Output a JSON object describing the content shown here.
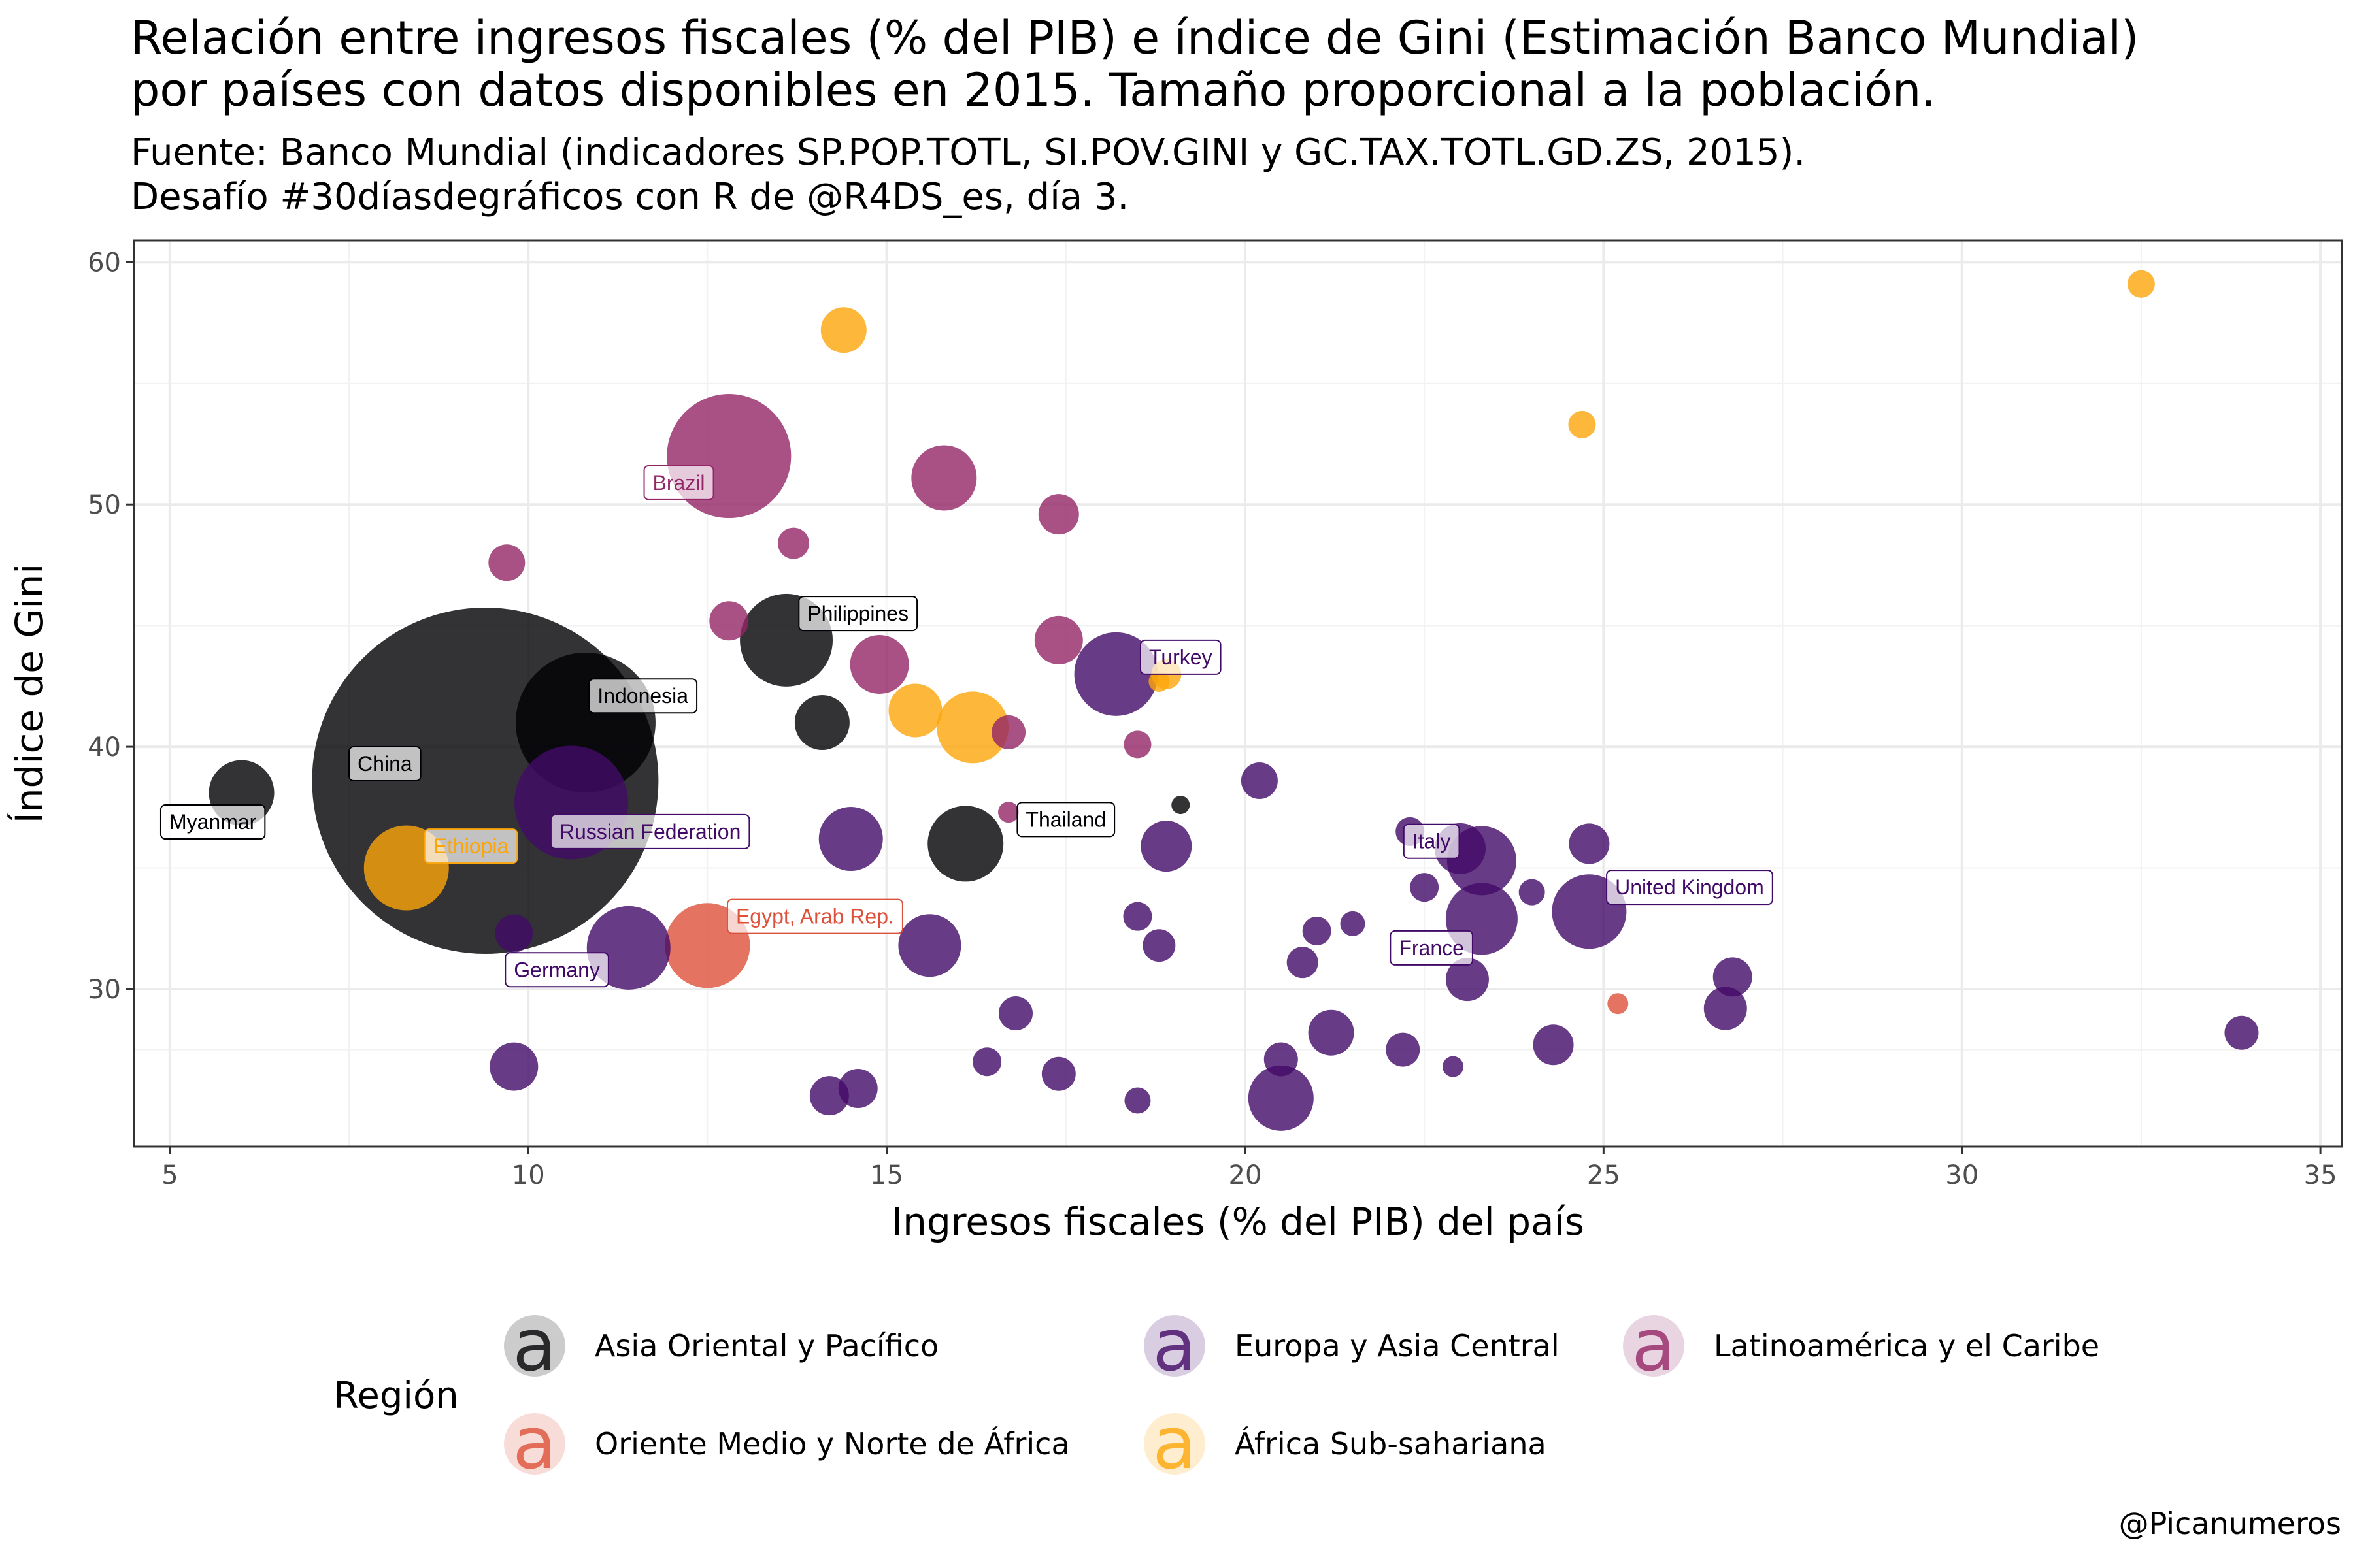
{
  "title": "Relación entre ingresos fiscales (% del PIB) e índice de Gini (Estimación Banco Mundial)\npor países con datos disponibles en 2015. Tamaño proporcional a la población.",
  "subtitle": "Fuente: Banco Mundial (indicadores SP.POP.TOTL, SI.POV.GINI y GC.TAX.TOTL.GD.ZS, 2015).\nDesafío #30díasdegráficos con R de @R4DS_es, día 3.",
  "caption": "@Picanumeros",
  "chart_data": {
    "type": "scatter",
    "xlabel": "Ingresos fiscales (% del PIB) del país",
    "ylabel": "Índice de Gini",
    "xlim": [
      4.5,
      35.3
    ],
    "ylim": [
      23.5,
      60.9
    ],
    "x_ticks": [
      5,
      10,
      15,
      20,
      25,
      30,
      35
    ],
    "y_ticks": [
      30,
      40,
      50,
      60
    ],
    "grid": true,
    "legend": {
      "title": "Región",
      "position": "bottom",
      "key_glyph": "a"
    },
    "regions": [
      {
        "name": "Asia Oriental y Pacífico",
        "color": "#000004"
      },
      {
        "name": "Europa y Asia Central",
        "color": "#420A68"
      },
      {
        "name": "Latinoamérica y el Caribe",
        "color": "#932667"
      },
      {
        "name": "Oriente Medio y Norte de África",
        "color": "#DD513A"
      },
      {
        "name": "África Sub-sahariana",
        "color": "#FCA50A"
      }
    ],
    "points": [
      {
        "x": 9.4,
        "y": 38.6,
        "r": 265,
        "region": 0,
        "label": "China",
        "lx": 8.0,
        "ly": 39.3
      },
      {
        "x": 10.8,
        "y": 41.0,
        "r": 107,
        "region": 0,
        "label": "Indonesia",
        "lx": 11.6,
        "ly": 42.1
      },
      {
        "x": 6.0,
        "y": 38.1,
        "r": 50,
        "region": 0,
        "label": "Myanmar",
        "lx": 5.6,
        "ly": 36.9
      },
      {
        "x": 13.6,
        "y": 44.4,
        "r": 71,
        "region": 0,
        "label": "Philippines",
        "lx": 14.6,
        "ly": 45.5
      },
      {
        "x": 14.1,
        "y": 41.0,
        "r": 42,
        "region": 0
      },
      {
        "x": 16.1,
        "y": 36.0,
        "r": 58,
        "region": 0,
        "label": "Thailand",
        "lx": 17.5,
        "ly": 37.0
      },
      {
        "x": 19.1,
        "y": 37.6,
        "r": 14,
        "region": 0
      },
      {
        "x": 10.6,
        "y": 37.7,
        "r": 87,
        "region": 1,
        "label": "Russian Federation",
        "lx": 11.7,
        "ly": 36.5
      },
      {
        "x": 11.4,
        "y": 31.7,
        "r": 64,
        "region": 1
      },
      {
        "x": 9.8,
        "y": 32.3,
        "r": 29,
        "region": 1,
        "label": "Germany",
        "lx": 10.4,
        "ly": 30.8
      },
      {
        "x": 9.8,
        "y": 26.8,
        "r": 37,
        "region": 1
      },
      {
        "x": 14.5,
        "y": 36.2,
        "r": 49,
        "region": 1
      },
      {
        "x": 15.6,
        "y": 31.8,
        "r": 48,
        "region": 1
      },
      {
        "x": 14.6,
        "y": 25.9,
        "r": 30,
        "region": 1
      },
      {
        "x": 14.2,
        "y": 25.6,
        "r": 30,
        "region": 1
      },
      {
        "x": 16.4,
        "y": 27.0,
        "r": 22,
        "region": 1
      },
      {
        "x": 16.8,
        "y": 29.0,
        "r": 26,
        "region": 1
      },
      {
        "x": 17.4,
        "y": 26.5,
        "r": 26,
        "region": 1
      },
      {
        "x": 18.2,
        "y": 43.0,
        "r": 64,
        "region": 1,
        "label": "Turkey",
        "lx": 19.1,
        "ly": 43.7
      },
      {
        "x": 18.5,
        "y": 33.0,
        "r": 22,
        "region": 1
      },
      {
        "x": 18.8,
        "y": 31.8,
        "r": 25,
        "region": 1
      },
      {
        "x": 18.9,
        "y": 35.9,
        "r": 39,
        "region": 1
      },
      {
        "x": 18.5,
        "y": 25.4,
        "r": 20,
        "region": 1
      },
      {
        "x": 20.2,
        "y": 38.6,
        "r": 28,
        "region": 1
      },
      {
        "x": 20.5,
        "y": 25.5,
        "r": 50,
        "region": 1
      },
      {
        "x": 20.5,
        "y": 27.1,
        "r": 26,
        "region": 1
      },
      {
        "x": 20.8,
        "y": 31.1,
        "r": 24,
        "region": 1
      },
      {
        "x": 21.0,
        "y": 32.4,
        "r": 22,
        "region": 1
      },
      {
        "x": 21.2,
        "y": 28.2,
        "r": 35,
        "region": 1
      },
      {
        "x": 21.5,
        "y": 32.7,
        "r": 19,
        "region": 1
      },
      {
        "x": 22.2,
        "y": 27.5,
        "r": 26,
        "region": 1
      },
      {
        "x": 22.3,
        "y": 36.5,
        "r": 22,
        "region": 1
      },
      {
        "x": 22.5,
        "y": 34.2,
        "r": 22,
        "region": 1
      },
      {
        "x": 22.9,
        "y": 26.8,
        "r": 16,
        "region": 1
      },
      {
        "x": 23.0,
        "y": 35.8,
        "r": 39,
        "region": 1,
        "label": "Italy",
        "lx": 22.6,
        "ly": 36.1
      },
      {
        "x": 23.3,
        "y": 35.3,
        "r": 53,
        "region": 1
      },
      {
        "x": 23.3,
        "y": 32.9,
        "r": 55,
        "region": 1,
        "label": "France",
        "lx": 22.6,
        "ly": 31.7
      },
      {
        "x": 23.1,
        "y": 30.4,
        "r": 33,
        "region": 1
      },
      {
        "x": 24.0,
        "y": 34.0,
        "r": 20,
        "region": 1
      },
      {
        "x": 24.3,
        "y": 27.7,
        "r": 31,
        "region": 1
      },
      {
        "x": 24.8,
        "y": 36.0,
        "r": 31,
        "region": 1
      },
      {
        "x": 24.8,
        "y": 33.2,
        "r": 57,
        "region": 1,
        "label": "United Kingdom",
        "lx": 26.2,
        "ly": 34.2
      },
      {
        "x": 26.7,
        "y": 29.2,
        "r": 33,
        "region": 1
      },
      {
        "x": 26.8,
        "y": 30.5,
        "r": 30,
        "region": 1
      },
      {
        "x": 33.9,
        "y": 28.2,
        "r": 26,
        "region": 1
      },
      {
        "x": 12.8,
        "y": 52.0,
        "r": 95,
        "region": 2,
        "label": "Brazil",
        "lx": 12.1,
        "ly": 50.9
      },
      {
        "x": 15.8,
        "y": 51.1,
        "r": 50,
        "region": 2
      },
      {
        "x": 9.7,
        "y": 47.6,
        "r": 28,
        "region": 2
      },
      {
        "x": 13.7,
        "y": 48.4,
        "r": 24,
        "region": 2
      },
      {
        "x": 12.8,
        "y": 45.2,
        "r": 30,
        "region": 2
      },
      {
        "x": 14.9,
        "y": 43.4,
        "r": 45,
        "region": 2
      },
      {
        "x": 17.4,
        "y": 49.6,
        "r": 31,
        "region": 2
      },
      {
        "x": 17.4,
        "y": 44.4,
        "r": 37,
        "region": 2
      },
      {
        "x": 16.7,
        "y": 40.6,
        "r": 26,
        "region": 2
      },
      {
        "x": 18.5,
        "y": 40.1,
        "r": 21,
        "region": 2
      },
      {
        "x": 16.7,
        "y": 37.3,
        "r": 16,
        "region": 2
      },
      {
        "x": 12.5,
        "y": 31.8,
        "r": 65,
        "region": 3,
        "label": "Egypt, Arab Rep.",
        "lx": 14.0,
        "ly": 33.0
      },
      {
        "x": 25.2,
        "y": 29.4,
        "r": 16,
        "region": 3
      },
      {
        "x": 8.3,
        "y": 35.0,
        "r": 65,
        "region": 4,
        "label": "Ethiopia",
        "lx": 9.2,
        "ly": 35.9
      },
      {
        "x": 14.4,
        "y": 57.2,
        "r": 35,
        "region": 4
      },
      {
        "x": 15.4,
        "y": 41.5,
        "r": 41,
        "region": 4
      },
      {
        "x": 16.2,
        "y": 40.8,
        "r": 55,
        "region": 4
      },
      {
        "x": 18.9,
        "y": 43.0,
        "r": 23,
        "region": 4
      },
      {
        "x": 18.8,
        "y": 42.7,
        "r": 16,
        "region": 4
      },
      {
        "x": 24.7,
        "y": 53.3,
        "r": 21,
        "region": 4
      },
      {
        "x": 32.5,
        "y": 59.1,
        "r": 21,
        "region": 4
      }
    ]
  }
}
